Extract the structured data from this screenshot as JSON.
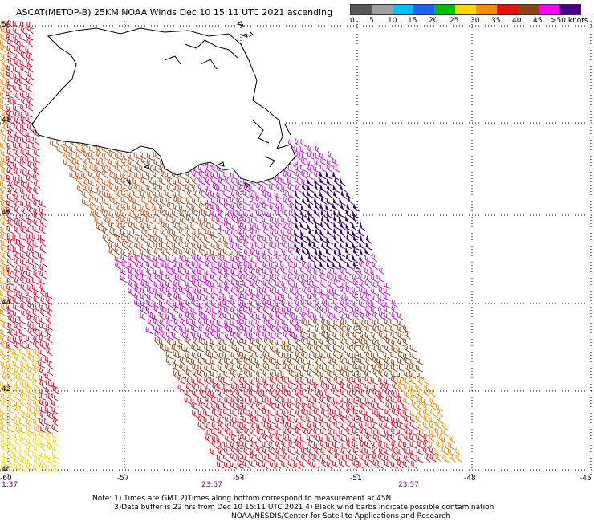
{
  "title": "ASCAT(METOP-B) 25KM NOAA Winds Dec 10 15:11 UTC 2021 ascending",
  "legend": {
    "labels": [
      "0",
      "5",
      "10",
      "15",
      "20",
      "25",
      "30",
      "35",
      "40",
      "45",
      ">50 knots"
    ],
    "colors": [
      "#585858",
      "#a0a0a0",
      "#00bfff",
      "#1e60ff",
      "#00c000",
      "#ffd700",
      "#ff8c00",
      "#e81010",
      "#8b4513",
      "#ff00ff",
      "#4b0082"
    ]
  },
  "axes": {
    "lon_labels": [
      "-60",
      "-57",
      "-54",
      "-51",
      "-48",
      "-45"
    ],
    "lat_labels": [
      "50",
      "48",
      "46",
      "44",
      "42",
      "40"
    ]
  },
  "times": {
    "left": "1:37",
    "mid": "23:57",
    "right": "23:57"
  },
  "notes": {
    "line1": "Note: 1) Times are GMT 2)Times along bottom correspond to measurement at 45N",
    "line2": "3)Data buffer is 22 hrs from Dec 10 15:11 UTC 2021 4) Black wind barbs indicate possible contamination",
    "line3": "NOAA/NESDIS/Center for Satellite Applications and Research"
  }
}
